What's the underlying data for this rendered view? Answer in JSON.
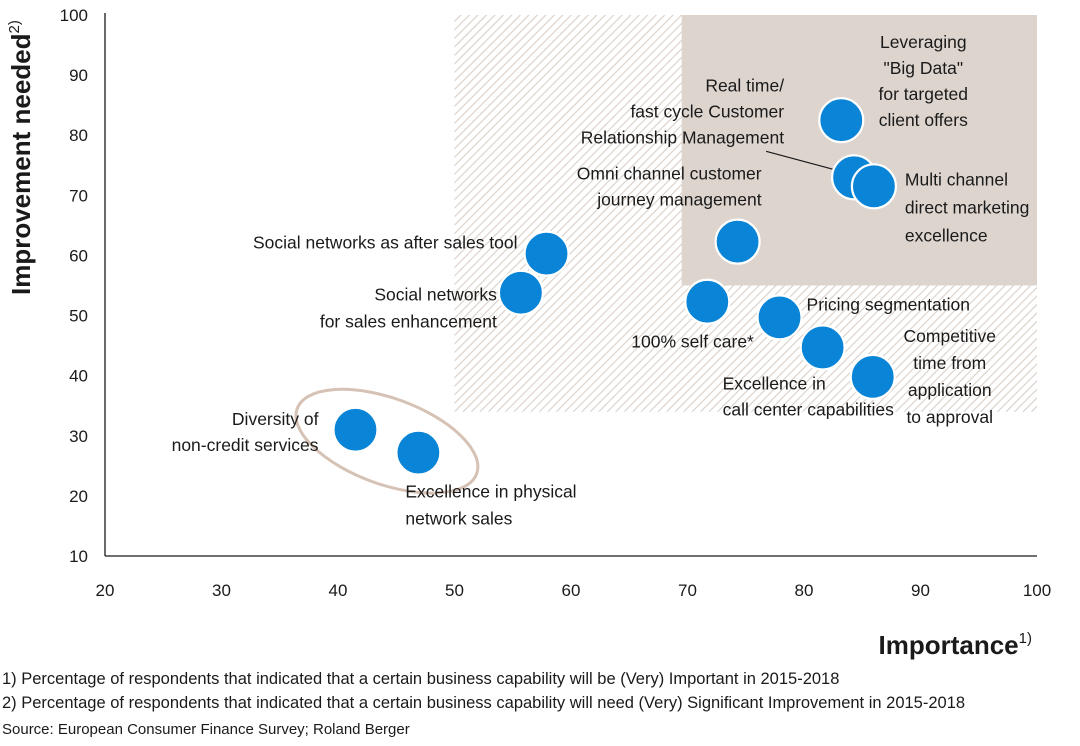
{
  "chart_data": {
    "type": "scatter",
    "xlabel": "Importance",
    "xlabel_sup": "1)",
    "ylabel": "Improvement needed",
    "ylabel_sup": "2)",
    "xlim": [
      20,
      100
    ],
    "ylim": [
      10,
      100
    ],
    "x_ticks": [
      20,
      30,
      40,
      50,
      60,
      70,
      80,
      90,
      100
    ],
    "y_ticks": [
      10,
      20,
      30,
      40,
      50,
      60,
      70,
      80,
      90,
      100
    ],
    "point_color": "#0a84d6",
    "hatch_region": {
      "x": [
        50,
        100
      ],
      "y": [
        34,
        100
      ]
    },
    "shaded_region": {
      "x": [
        69.5,
        100
      ],
      "y": [
        55,
        100
      ],
      "color": "#ddd4ce"
    },
    "ellipse_group": {
      "points": [
        "Diversity of non-credit services",
        "Excellence in physical network sales"
      ],
      "color": "#d6c2b5"
    },
    "points": [
      {
        "x": 83.2,
        "y": 82.5,
        "lines": [
          "Leveraging",
          "\"Big Data\"",
          "for targeted",
          "client offers"
        ]
      },
      {
        "x": 84.3,
        "y": 73,
        "lines": [
          "Real time/",
          "fast cycle Customer",
          "Relationship Management"
        ]
      },
      {
        "x": 86,
        "y": 71.5,
        "lines": [
          "Multi channel",
          "direct marketing",
          "excellence"
        ]
      },
      {
        "x": 74.3,
        "y": 62.3,
        "lines": [
          "Omni channel customer",
          "journey management"
        ]
      },
      {
        "x": 57.9,
        "y": 60.3,
        "lines": [
          "Social networks as after sales tool"
        ]
      },
      {
        "x": 55.7,
        "y": 53.8,
        "lines": [
          "Social networks",
          "for sales enhancement"
        ]
      },
      {
        "x": 71.7,
        "y": 52.3,
        "lines": [
          "100% self care*"
        ]
      },
      {
        "x": 77.9,
        "y": 49.7,
        "lines": [
          "Pricing segmentation"
        ]
      },
      {
        "x": 81.6,
        "y": 44.7,
        "lines": [
          "Excellence in",
          "call center capabilities"
        ]
      },
      {
        "x": 85.9,
        "y": 39.8,
        "lines": [
          "Competitive",
          "time from",
          "application",
          "to approval"
        ]
      },
      {
        "x": 41.5,
        "y": 31,
        "lines": [
          "Diversity of",
          "non-credit services"
        ]
      },
      {
        "x": 46.9,
        "y": 27.2,
        "lines": [
          "Excellence in physical",
          "network sales"
        ]
      }
    ]
  },
  "footnotes": {
    "note1": "1) Percentage of respondents that indicated that a certain business capability will be (Very) Important in 2015-2018",
    "note2": "2) Percentage of respondents that indicated that a certain business capability will need (Very) Significant Improvement in 2015-2018",
    "source": "Source: European Consumer Finance Survey; Roland Berger"
  }
}
